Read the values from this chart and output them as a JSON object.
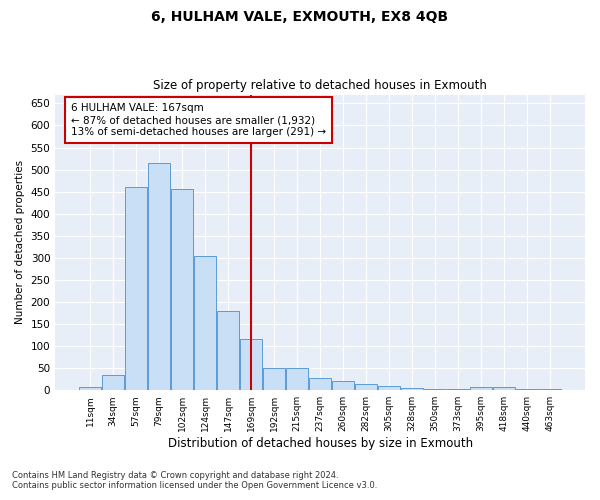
{
  "title": "6, HULHAM VALE, EXMOUTH, EX8 4QB",
  "subtitle": "Size of property relative to detached houses in Exmouth",
  "xlabel": "Distribution of detached houses by size in Exmouth",
  "ylabel": "Number of detached properties",
  "categories": [
    "11sqm",
    "34sqm",
    "57sqm",
    "79sqm",
    "102sqm",
    "124sqm",
    "147sqm",
    "169sqm",
    "192sqm",
    "215sqm",
    "237sqm",
    "260sqm",
    "282sqm",
    "305sqm",
    "328sqm",
    "350sqm",
    "373sqm",
    "395sqm",
    "418sqm",
    "440sqm",
    "463sqm"
  ],
  "values": [
    7,
    35,
    460,
    515,
    455,
    305,
    180,
    115,
    50,
    50,
    27,
    20,
    13,
    9,
    5,
    2,
    2,
    7,
    7,
    3,
    3
  ],
  "bar_color": "#c9dff5",
  "bar_edge_color": "#5b9bd5",
  "background_color": "#e8eef8",
  "grid_color": "#ffffff",
  "vline_index": 7,
  "vline_color": "#cc0000",
  "annotation_title": "6 HULHAM VALE: 167sqm",
  "annotation_line2": "← 87% of detached houses are smaller (1,932)",
  "annotation_line3": "13% of semi-detached houses are larger (291) →",
  "annotation_box_color": "#ffffff",
  "annotation_box_edge_color": "#cc0000",
  "footnote1": "Contains HM Land Registry data © Crown copyright and database right 2024.",
  "footnote2": "Contains public sector information licensed under the Open Government Licence v3.0.",
  "ylim": [
    0,
    670
  ],
  "yticks": [
    0,
    50,
    100,
    150,
    200,
    250,
    300,
    350,
    400,
    450,
    500,
    550,
    600,
    650
  ]
}
